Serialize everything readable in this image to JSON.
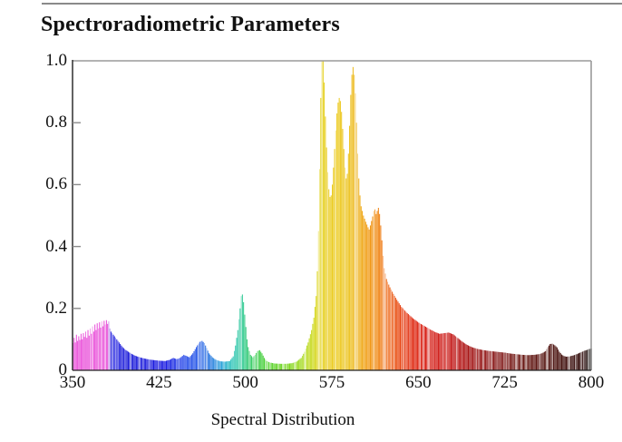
{
  "page": {
    "title": "Spectroradiometric Parameters",
    "separator_color": "#8a8a8a",
    "background": "#ffffff"
  },
  "chart_data": {
    "type": "bar",
    "title": "Spectroradiometric Parameters",
    "xlabel": "Spectral Distribution",
    "ylabel": "",
    "x_unit": "nm",
    "xlim": [
      350,
      800
    ],
    "ylim": [
      0,
      1.0
    ],
    "grid": false,
    "legend": "none",
    "bar_step_nm": 1,
    "x_ticks": [
      350,
      425,
      500,
      575,
      650,
      725,
      800
    ],
    "x_tick_labels": [
      "350",
      "425",
      "500",
      "575",
      "650",
      "725",
      "800"
    ],
    "y_ticks": [
      0,
      0.2,
      0.4,
      0.6,
      0.8,
      1.0
    ],
    "y_tick_labels": [
      "0",
      "0.2",
      "0.4",
      "0.6",
      "0.8",
      "1.0"
    ],
    "axis_colors": {
      "left_axis": "#3a3a3a",
      "top_right_border": "#9a9a9a",
      "baseline": "#222222",
      "tick": "#8a8a8a"
    },
    "points": [
      [
        350,
        0.088
      ],
      [
        351,
        0.105
      ],
      [
        352,
        0.09
      ],
      [
        353,
        0.115
      ],
      [
        354,
        0.095
      ],
      [
        355,
        0.11
      ],
      [
        356,
        0.098
      ],
      [
        357,
        0.118
      ],
      [
        358,
        0.1
      ],
      [
        359,
        0.12
      ],
      [
        360,
        0.108
      ],
      [
        361,
        0.125
      ],
      [
        362,
        0.105
      ],
      [
        363,
        0.13
      ],
      [
        364,
        0.112
      ],
      [
        365,
        0.135
      ],
      [
        366,
        0.118
      ],
      [
        367,
        0.142
      ],
      [
        368,
        0.125
      ],
      [
        369,
        0.148
      ],
      [
        370,
        0.13
      ],
      [
        371,
        0.152
      ],
      [
        372,
        0.135
      ],
      [
        373,
        0.155
      ],
      [
        374,
        0.138
      ],
      [
        375,
        0.158
      ],
      [
        376,
        0.142
      ],
      [
        377,
        0.16
      ],
      [
        378,
        0.148
      ],
      [
        379,
        0.162
      ],
      [
        380,
        0.15
      ],
      [
        381,
        0.158
      ],
      [
        382,
        0.135
      ],
      [
        383,
        0.125
      ],
      [
        385,
        0.115
      ],
      [
        387,
        0.105
      ],
      [
        389,
        0.095
      ],
      [
        391,
        0.085
      ],
      [
        393,
        0.075
      ],
      [
        396,
        0.065
      ],
      [
        400,
        0.055
      ],
      [
        404,
        0.047
      ],
      [
        408,
        0.042
      ],
      [
        412,
        0.038
      ],
      [
        416,
        0.035
      ],
      [
        420,
        0.033
      ],
      [
        425,
        0.031
      ],
      [
        430,
        0.03
      ],
      [
        434,
        0.034
      ],
      [
        437,
        0.04
      ],
      [
        440,
        0.036
      ],
      [
        443,
        0.04
      ],
      [
        446,
        0.05
      ],
      [
        448,
        0.047
      ],
      [
        451,
        0.042
      ],
      [
        454,
        0.055
      ],
      [
        457,
        0.075
      ],
      [
        460,
        0.092
      ],
      [
        462,
        0.095
      ],
      [
        464,
        0.088
      ],
      [
        466,
        0.072
      ],
      [
        468,
        0.055
      ],
      [
        471,
        0.042
      ],
      [
        474,
        0.034
      ],
      [
        478,
        0.029
      ],
      [
        482,
        0.028
      ],
      [
        486,
        0.03
      ],
      [
        489,
        0.045
      ],
      [
        491,
        0.08
      ],
      [
        493,
        0.13
      ],
      [
        495,
        0.2
      ],
      [
        496,
        0.24
      ],
      [
        497,
        0.245
      ],
      [
        498,
        0.22
      ],
      [
        499,
        0.18
      ],
      [
        500,
        0.14
      ],
      [
        501,
        0.1
      ],
      [
        502,
        0.075
      ],
      [
        504,
        0.05
      ],
      [
        506,
        0.042
      ],
      [
        508,
        0.05
      ],
      [
        510,
        0.062
      ],
      [
        512,
        0.065
      ],
      [
        514,
        0.055
      ],
      [
        516,
        0.04
      ],
      [
        518,
        0.03
      ],
      [
        521,
        0.025
      ],
      [
        525,
        0.022
      ],
      [
        530,
        0.021
      ],
      [
        535,
        0.021
      ],
      [
        540,
        0.023
      ],
      [
        544,
        0.028
      ],
      [
        548,
        0.04
      ],
      [
        551,
        0.06
      ],
      [
        554,
        0.09
      ],
      [
        557,
        0.13
      ],
      [
        559,
        0.17
      ],
      [
        561,
        0.24
      ],
      [
        562,
        0.32
      ],
      [
        563,
        0.45
      ],
      [
        564,
        0.65
      ],
      [
        565,
        0.88
      ],
      [
        566,
        1.0
      ],
      [
        567,
        1.0
      ],
      [
        568,
        0.93
      ],
      [
        569,
        0.82
      ],
      [
        570,
        0.72
      ],
      [
        571,
        0.64
      ],
      [
        572,
        0.585
      ],
      [
        573,
        0.56
      ],
      [
        574,
        0.565
      ],
      [
        575,
        0.6
      ],
      [
        576,
        0.655
      ],
      [
        577,
        0.715
      ],
      [
        578,
        0.775
      ],
      [
        579,
        0.83
      ],
      [
        580,
        0.865
      ],
      [
        581,
        0.88
      ],
      [
        582,
        0.87
      ],
      [
        583,
        0.835
      ],
      [
        584,
        0.78
      ],
      [
        585,
        0.715
      ],
      [
        586,
        0.655
      ],
      [
        587,
        0.62
      ],
      [
        588,
        0.635
      ],
      [
        589,
        0.7
      ],
      [
        590,
        0.79
      ],
      [
        591,
        0.89
      ],
      [
        592,
        0.955
      ],
      [
        593,
        0.98
      ],
      [
        594,
        0.955
      ],
      [
        595,
        0.895
      ],
      [
        596,
        0.8
      ],
      [
        597,
        0.7
      ],
      [
        598,
        0.62
      ],
      [
        599,
        0.565
      ],
      [
        600,
        0.53
      ],
      [
        602,
        0.5
      ],
      [
        604,
        0.48
      ],
      [
        606,
        0.462
      ],
      [
        607,
        0.455
      ],
      [
        608,
        0.468
      ],
      [
        610,
        0.497
      ],
      [
        611,
        0.515
      ],
      [
        612,
        0.52
      ],
      [
        613,
        0.505
      ],
      [
        614,
        0.515
      ],
      [
        615,
        0.525
      ],
      [
        616,
        0.505
      ],
      [
        617,
        0.468
      ],
      [
        618,
        0.42
      ],
      [
        619,
        0.37
      ],
      [
        620,
        0.33
      ],
      [
        622,
        0.295
      ],
      [
        625,
        0.268
      ],
      [
        628,
        0.247
      ],
      [
        631,
        0.228
      ],
      [
        635,
        0.205
      ],
      [
        640,
        0.185
      ],
      [
        645,
        0.168
      ],
      [
        650,
        0.154
      ],
      [
        655,
        0.143
      ],
      [
        660,
        0.132
      ],
      [
        664,
        0.124
      ],
      [
        668,
        0.118
      ],
      [
        672,
        0.12
      ],
      [
        676,
        0.122
      ],
      [
        680,
        0.116
      ],
      [
        684,
        0.104
      ],
      [
        688,
        0.092
      ],
      [
        692,
        0.082
      ],
      [
        696,
        0.075
      ],
      [
        700,
        0.07
      ],
      [
        705,
        0.066
      ],
      [
        710,
        0.063
      ],
      [
        715,
        0.061
      ],
      [
        720,
        0.059
      ],
      [
        725,
        0.057
      ],
      [
        730,
        0.054
      ],
      [
        735,
        0.052
      ],
      [
        740,
        0.05
      ],
      [
        745,
        0.049
      ],
      [
        750,
        0.05
      ],
      [
        754,
        0.052
      ],
      [
        757,
        0.055
      ],
      [
        760,
        0.062
      ],
      [
        762,
        0.075
      ],
      [
        764,
        0.085
      ],
      [
        766,
        0.086
      ],
      [
        768,
        0.081
      ],
      [
        770,
        0.074
      ],
      [
        772,
        0.06
      ],
      [
        774,
        0.051
      ],
      [
        776,
        0.046
      ],
      [
        778,
        0.044
      ],
      [
        781,
        0.045
      ],
      [
        784,
        0.048
      ],
      [
        787,
        0.052
      ],
      [
        790,
        0.057
      ],
      [
        793,
        0.062
      ],
      [
        796,
        0.066
      ],
      [
        798,
        0.069
      ],
      [
        800,
        0.07
      ]
    ],
    "color_stops": [
      [
        350,
        "#ea50da"
      ],
      [
        380,
        "#e84fd8"
      ],
      [
        383,
        "#2a2ae0"
      ],
      [
        400,
        "#1a1ad8"
      ],
      [
        430,
        "#1818e0"
      ],
      [
        445,
        "#2244e8"
      ],
      [
        458,
        "#2a5ce8"
      ],
      [
        470,
        "#2b7de0"
      ],
      [
        480,
        "#2aa8d8"
      ],
      [
        488,
        "#2cc4b8"
      ],
      [
        496,
        "#2ec99a"
      ],
      [
        503,
        "#38cc70"
      ],
      [
        510,
        "#44d055"
      ],
      [
        518,
        "#4ed02e"
      ],
      [
        528,
        "#62d41f"
      ],
      [
        538,
        "#7ed61c"
      ],
      [
        548,
        "#a0da1c"
      ],
      [
        556,
        "#c4da1e"
      ],
      [
        563,
        "#e0d51f"
      ],
      [
        570,
        "#e9cd20"
      ],
      [
        580,
        "#ecca1f"
      ],
      [
        590,
        "#ecc11d"
      ],
      [
        598,
        "#eeae18"
      ],
      [
        606,
        "#f19a12"
      ],
      [
        614,
        "#f08710"
      ],
      [
        620,
        "#ee6f10"
      ],
      [
        628,
        "#ea5410"
      ],
      [
        636,
        "#e63d11"
      ],
      [
        645,
        "#df2a12"
      ],
      [
        655,
        "#d81f14"
      ],
      [
        665,
        "#d11a15"
      ],
      [
        675,
        "#c91613"
      ],
      [
        685,
        "#b61414"
      ],
      [
        695,
        "#a31414"
      ],
      [
        705,
        "#941616"
      ],
      [
        715,
        "#891818"
      ],
      [
        725,
        "#7d1a18"
      ],
      [
        735,
        "#701a16"
      ],
      [
        745,
        "#651813"
      ],
      [
        755,
        "#5a1511"
      ],
      [
        765,
        "#4e120e"
      ],
      [
        775,
        "#420f0c"
      ],
      [
        785,
        "#360b09"
      ],
      [
        793,
        "#2b0807"
      ],
      [
        798,
        "#262220"
      ],
      [
        800,
        "#1c1a1a"
      ]
    ]
  }
}
